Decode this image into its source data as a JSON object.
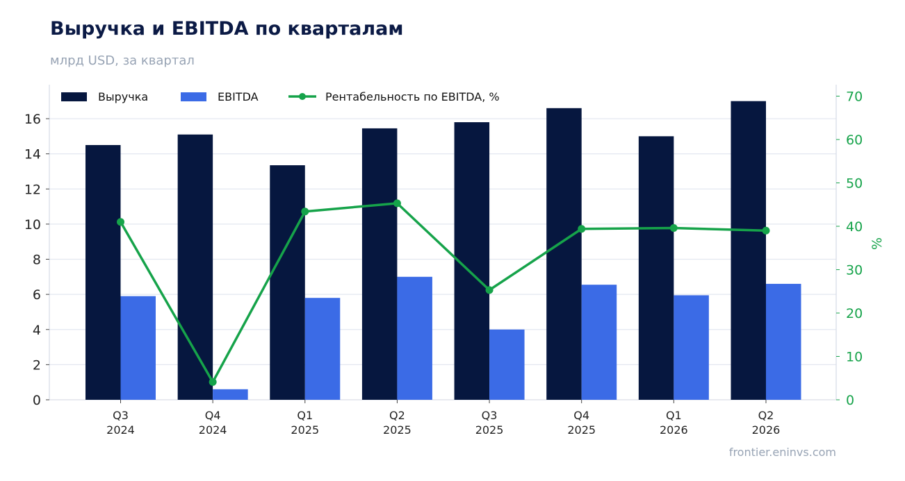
{
  "chart_data": {
    "type": "bar",
    "title": "Выручка и EBITDA по кварталам",
    "subtitle": "млрд USD, за квартал",
    "source": "frontier.eninvs.com",
    "categories": [
      [
        "Q3",
        "2024"
      ],
      [
        "Q4",
        "2024"
      ],
      [
        "Q1",
        "2025"
      ],
      [
        "Q2",
        "2025"
      ],
      [
        "Q3",
        "2025"
      ],
      [
        "Q4",
        "2025"
      ],
      [
        "Q1",
        "2026"
      ],
      [
        "Q2",
        "2026"
      ]
    ],
    "series": [
      {
        "name": "Выручка",
        "type": "bar",
        "axis": "left",
        "color": "#06173f",
        "values": [
          14.5,
          15.1,
          13.35,
          15.45,
          15.8,
          16.6,
          15.0,
          17.0
        ]
      },
      {
        "name": "EBITDA",
        "type": "bar",
        "axis": "left",
        "color": "#3b6be6",
        "values": [
          5.9,
          0.6,
          5.8,
          7.0,
          4.0,
          6.55,
          5.95,
          6.6
        ]
      },
      {
        "name": "Рентабельность по EBITDA, %",
        "type": "line",
        "axis": "right",
        "color": "#16a34a",
        "values": [
          41.0,
          4.1,
          43.4,
          45.3,
          25.3,
          39.4,
          39.6,
          39.0
        ]
      }
    ],
    "y_left": {
      "ticks": [
        0,
        2,
        4,
        6,
        8,
        10,
        12,
        14,
        16
      ],
      "ylim": [
        0,
        17.8
      ]
    },
    "y_right": {
      "label": "%",
      "ticks": [
        0,
        10,
        20,
        30,
        40,
        50,
        60,
        70
      ],
      "ylim": [
        0,
        72.5
      ],
      "color": "#16a34a"
    },
    "grid": true,
    "legend": "top-left"
  }
}
